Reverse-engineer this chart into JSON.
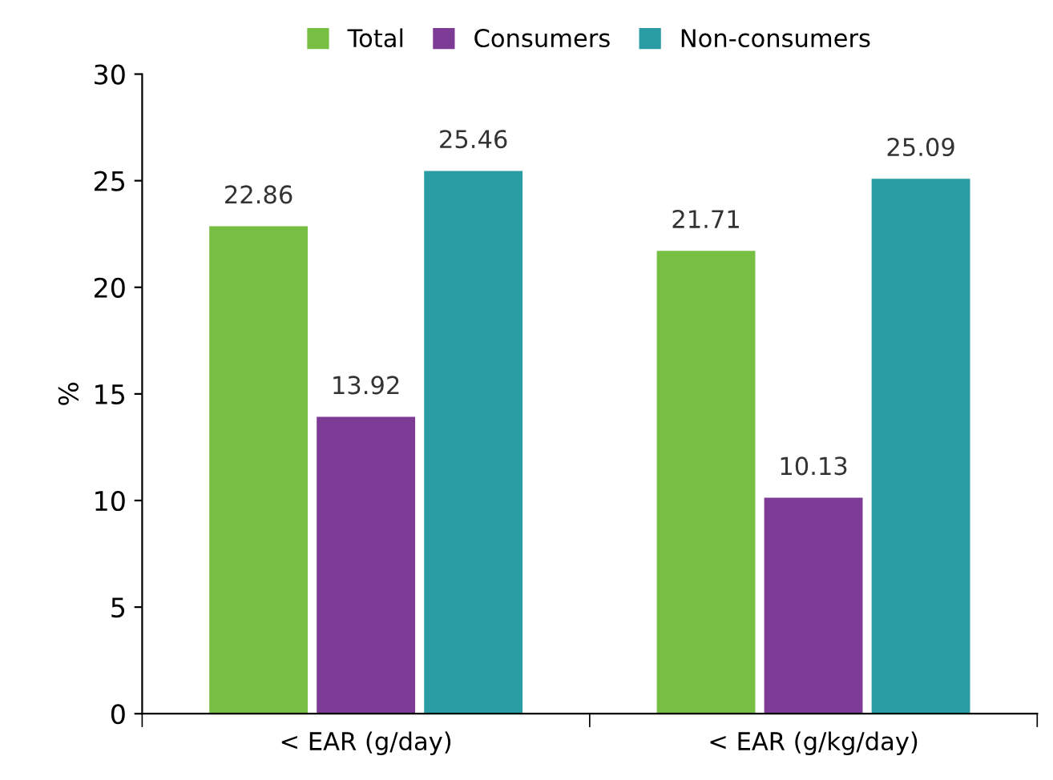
{
  "chart_data": {
    "type": "bar",
    "ylabel": "%",
    "categories": [
      "< EAR (g/day)",
      "< EAR (g/kg/day)"
    ],
    "series": [
      {
        "name": "Total",
        "color": "#77bf43",
        "values": [
          22.86,
          21.71
        ]
      },
      {
        "name": "Consumers",
        "color": "#7e3b96",
        "values": [
          13.92,
          10.13
        ]
      },
      {
        "name": "Non-consumers",
        "color": "#2a9ca3",
        "values": [
          25.46,
          25.09
        ]
      }
    ],
    "ylim": [
      0,
      30
    ],
    "yticks": [
      0,
      5,
      10,
      15,
      20,
      25,
      30
    ],
    "grid": false,
    "legend": "top",
    "data_labels": true
  }
}
